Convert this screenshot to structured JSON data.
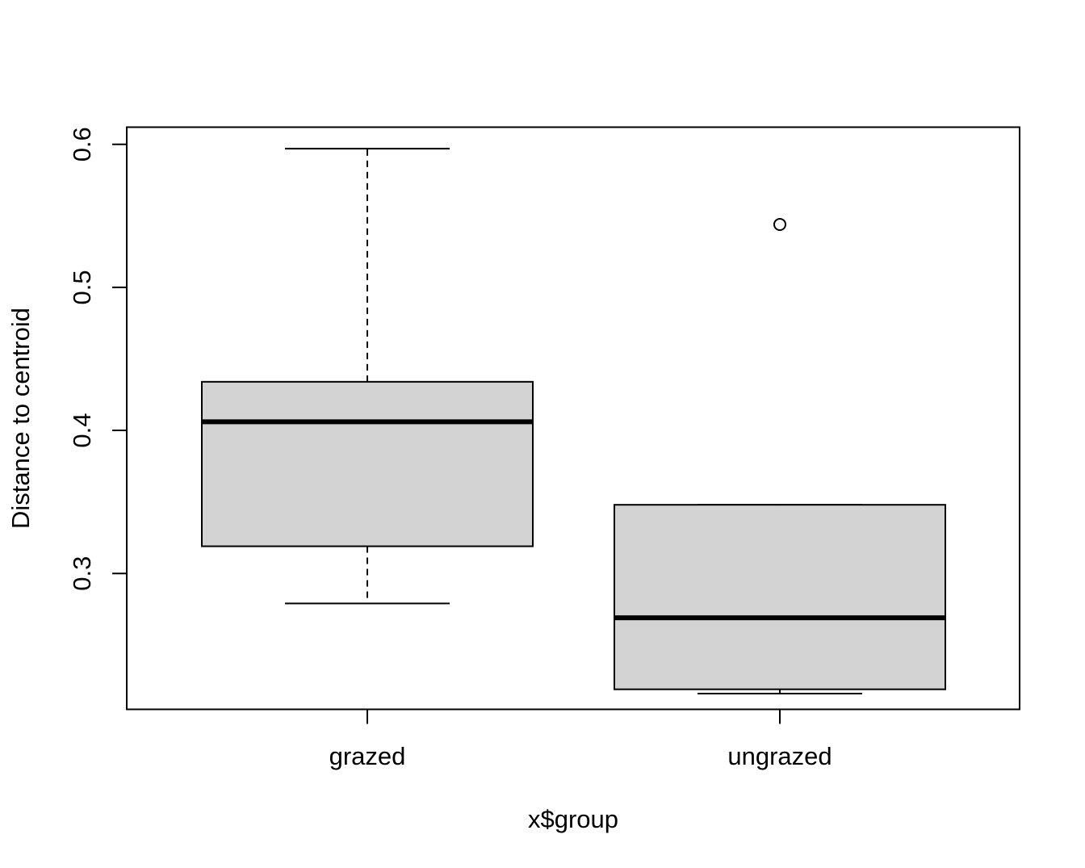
{
  "chart_data": {
    "type": "boxplot",
    "title": "",
    "xlabel": "x$group",
    "ylabel": "Distance to centroid",
    "ylim": [
      0.205,
      0.612
    ],
    "yticks": [
      0.3,
      0.4,
      0.5,
      0.6
    ],
    "ytick_labels": [
      "0.3",
      "0.4",
      "0.5",
      "0.6"
    ],
    "categories": [
      "grazed",
      "ungrazed"
    ],
    "box_fill": "#d3d3d3",
    "line_color": "#000000",
    "groups": [
      {
        "label": "grazed",
        "whisker_low": 0.279,
        "q1": 0.319,
        "median": 0.406,
        "q3": 0.434,
        "whisker_high": 0.597,
        "outliers": []
      },
      {
        "label": "ungrazed",
        "whisker_low": 0.216,
        "q1": 0.219,
        "median": 0.269,
        "q3": 0.348,
        "whisker_high": 0.348,
        "outliers": [
          0.544
        ]
      }
    ]
  }
}
